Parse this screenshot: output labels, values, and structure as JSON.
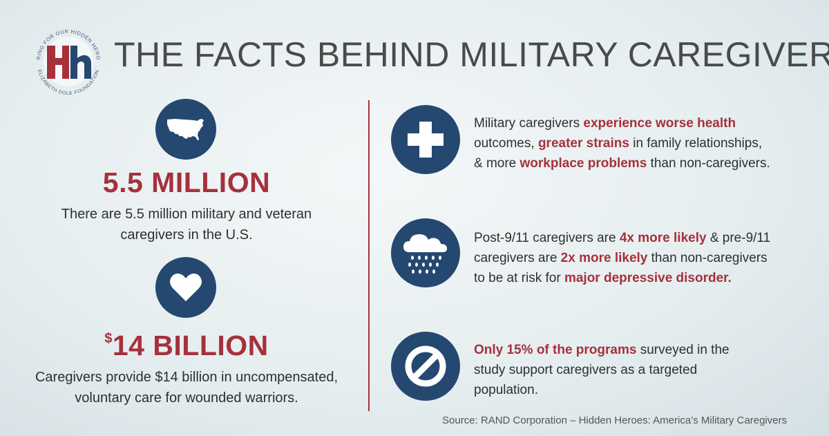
{
  "logo": {
    "monogram": "Hh",
    "arc_top": "CARING FOR OUR HIDDEN HEROES",
    "arc_bottom": "ELIZABETH DOLE FOUNDATION"
  },
  "title": "THE FACTS BEHIND MILITARY CAREGIVERS",
  "stats": [
    {
      "icon": "usa-map-icon",
      "value": "5.5 MILLION",
      "desc_line1": "There are 5.5 million military and veteran",
      "desc_line2": "caregivers in the U.S."
    },
    {
      "icon": "heart-icon",
      "currency": "$",
      "value": "14 BILLION",
      "desc_line1": "Caregivers provide $14 billion in uncompensated,",
      "desc_line2": "voluntary care for wounded warriors."
    }
  ],
  "facts": [
    {
      "icon": "medical-cross-icon",
      "l1a": "Military caregivers ",
      "l1b": "experience worse health",
      "l2a": "outcomes, ",
      "l2b": "greater strains",
      "l2c": " in family relationships,",
      "l3a": "& more ",
      "l3b": "workplace problems",
      "l3c": " than non-caregivers."
    },
    {
      "icon": "rain-cloud-icon",
      "l1a": "Post-9/11 caregivers are ",
      "l1b": "4x more likely",
      "l1c": " & pre-9/11",
      "l2a": "caregivers are ",
      "l2b": "2x more likely",
      "l2c": " than non-caregivers",
      "l3a": "to be at risk for ",
      "l3b": "major depressive disorder."
    },
    {
      "icon": "prohibited-icon",
      "l1a": "Only 15% of the programs",
      "l1b": " surveyed in the",
      "l2": "study support caregivers as a targeted",
      "l3": "population."
    }
  ],
  "source": "Source: RAND Corporation – Hidden Heroes: America’s Military Caregivers",
  "colors": {
    "navy": "#254870",
    "red": "#a6313b",
    "text": "#2f2f2f"
  }
}
